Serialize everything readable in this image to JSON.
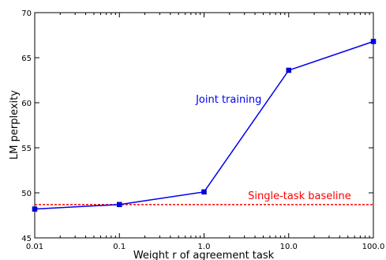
{
  "chart_data": {
    "type": "line",
    "xlabel": "Weight r of agreement task",
    "ylabel": "LM perplexity",
    "x_scale": "log",
    "xlim": [
      0.01,
      100.0
    ],
    "ylim": [
      45,
      70
    ],
    "x_ticks": [
      0.01,
      0.1,
      1.0,
      10.0,
      100.0
    ],
    "x_tick_labels": [
      "0.01",
      "0.1",
      "1.0",
      "10.0",
      "100.0"
    ],
    "y_ticks": [
      45,
      50,
      55,
      60,
      65,
      70
    ],
    "y_tick_labels": [
      "45",
      "50",
      "55",
      "60",
      "65",
      "70"
    ],
    "grid": false,
    "series": [
      {
        "name": "Joint training",
        "color": "#0000ee",
        "marker": "square",
        "x": [
          0.01,
          0.1,
          1.0,
          10.0,
          100.0
        ],
        "y": [
          48.2,
          48.7,
          50.1,
          63.6,
          66.8
        ]
      }
    ],
    "baseline": {
      "name": "Single-task baseline",
      "color": "#ff0000",
      "style": "dashed",
      "y": 48.7
    },
    "annotations": [
      {
        "text": "Joint training",
        "color": "#0000ee",
        "x": 0.8,
        "y": 60.0
      },
      {
        "text": "Single-task baseline",
        "color": "#ff0000",
        "x": 3.3,
        "y": 49.3
      }
    ]
  }
}
